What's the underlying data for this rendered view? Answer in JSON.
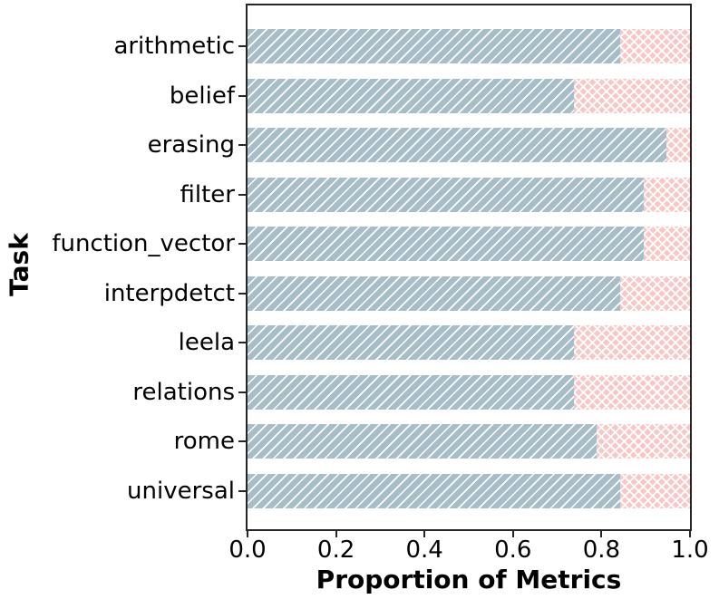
{
  "chart_data": {
    "type": "bar",
    "orientation": "horizontal",
    "stacked": true,
    "title": "",
    "xlabel": "Proportion of Metrics",
    "ylabel": "Task",
    "xlim": [
      0,
      1
    ],
    "xticks": [
      0.0,
      0.2,
      0.4,
      0.6,
      0.8,
      1.0
    ],
    "xtick_labels": [
      "0.0",
      "0.2",
      "0.4",
      "0.6",
      "0.8",
      "1.0"
    ],
    "grid": false,
    "legend": "none",
    "categories": [
      "arithmetic",
      "belief",
      "erasing",
      "filter",
      "function_vector",
      "interpdetct",
      "leela",
      "relations",
      "rome",
      "universal"
    ],
    "series": [
      {
        "name": "blue-diagonal-hatch-segment",
        "color": "#a7bdc8",
        "hatch": "diagonal",
        "values": [
          0.842,
          0.737,
          0.947,
          0.895,
          0.895,
          0.842,
          0.737,
          0.737,
          0.789,
          0.842
        ]
      },
      {
        "name": "pink-cross-hatch-segment",
        "color": "#f8c8c6",
        "hatch": "cross",
        "values": [
          0.158,
          0.263,
          0.053,
          0.105,
          0.105,
          0.158,
          0.263,
          0.263,
          0.211,
          0.158
        ]
      }
    ]
  }
}
